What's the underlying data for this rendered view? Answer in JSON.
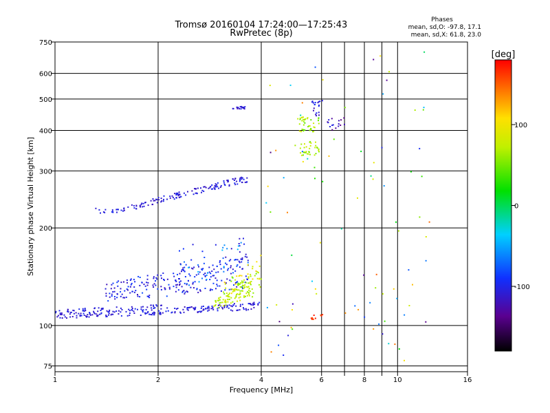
{
  "chart_data": {
    "type": "scatter",
    "title": "Tromsø 20160104 17:24:00—17:25:43",
    "subtitle": "RwPretec (8p)",
    "stats": {
      "header": "Phases",
      "line1": "mean, sd,O: -97.8, 17.1",
      "line2": "mean, sd,X:  61.8, 23.0"
    },
    "xlabel": "Frequency [MHz]",
    "ylabel": "Stationary phase Virtual Height [km]",
    "x_scale": "log",
    "y_scale": "log",
    "xlim": [
      1,
      16
    ],
    "ylim": [
      72,
      750
    ],
    "x_ticks": [
      1,
      2,
      4,
      6,
      8,
      10,
      16
    ],
    "x_tick_labels": [
      "1",
      "2",
      "4",
      "6",
      "8",
      "10",
      "16"
    ],
    "x_minor_ticks": [
      7,
      9
    ],
    "y_ticks": [
      75,
      100,
      200,
      300,
      400,
      500,
      600,
      750
    ],
    "y_tick_labels": [
      "75",
      "100",
      "200",
      "300",
      "400",
      "500",
      "600",
      "750"
    ],
    "grid": true,
    "colorbar": {
      "label": "[deg]",
      "range": [
        -180,
        180
      ],
      "ticks": [
        100,
        0,
        -100
      ],
      "tick_labels": [
        "100",
        "0",
        "-100"
      ]
    },
    "clusters": [
      {
        "x_range": [
          1.0,
          2.05
        ],
        "y_start": [
          105,
          112
        ],
        "y_end": [
          108,
          116
        ],
        "phase": [
          -118,
          -95
        ],
        "n": 150
      },
      {
        "x_range": [
          2.0,
          3.95
        ],
        "y_start": [
          108,
          113
        ],
        "y_end": [
          112,
          118
        ],
        "phase": [
          -120,
          -95
        ],
        "n": 110
      },
      {
        "x_range": [
          1.4,
          3.7
        ],
        "y_start": [
          118,
          135
        ],
        "y_end": [
          130,
          165
        ],
        "phase": [
          -120,
          -80
        ],
        "n": 230
      },
      {
        "x_range": [
          2.3,
          3.7
        ],
        "y_start": [
          130,
          175
        ],
        "y_end": [
          150,
          190
        ],
        "phase": [
          -120,
          -40
        ],
        "n": 60
      },
      {
        "x_range": [
          2.9,
          4.0
        ],
        "y_start": [
          112,
          118
        ],
        "y_end": [
          125,
          150
        ],
        "phase": [
          55,
          90
        ],
        "n": 110
      },
      {
        "x_range": [
          3.1,
          4.0
        ],
        "y_start": [
          118,
          135
        ],
        "y_end": [
          140,
          165
        ],
        "phase": [
          40,
          120
        ],
        "n": 40
      },
      {
        "x_range": [
          1.5,
          3.7
        ],
        "y_start": [
          220,
          228
        ],
        "y_end": [
          278,
          292
        ],
        "phase": [
          -118,
          -95
        ],
        "n": 140
      },
      {
        "x_range": [
          1.3,
          1.55
        ],
        "y_start": [
          223,
          230
        ],
        "y_end": [
          220,
          228
        ],
        "phase": [
          -110,
          -95
        ],
        "n": 10
      },
      {
        "x_range": [
          3.3,
          3.6
        ],
        "y_start": [
          466,
          474
        ],
        "y_end": [
          466,
          474
        ],
        "phase": [
          -120,
          -100
        ],
        "n": 18
      },
      {
        "x_range": [
          5.1,
          5.9
        ],
        "y_start": [
          395,
          440
        ],
        "y_end": [
          395,
          440
        ],
        "phase": [
          40,
          90
        ],
        "n": 40
      },
      {
        "x_range": [
          5.2,
          5.9
        ],
        "y_start": [
          335,
          370
        ],
        "y_end": [
          335,
          370
        ],
        "phase": [
          50,
          90
        ],
        "n": 35
      },
      {
        "x_range": [
          5.6,
          5.95
        ],
        "y_start": [
          440,
          500
        ],
        "y_end": [
          440,
          500
        ],
        "phase": [
          -120,
          -90
        ],
        "n": 18
      },
      {
        "x_range": [
          6.2,
          7.0
        ],
        "y_start": [
          400,
          440
        ],
        "y_end": [
          400,
          440
        ],
        "phase": [
          -140,
          -100
        ],
        "n": 16
      },
      {
        "x_range": [
          5.5,
          6.1
        ],
        "y_start": [
          104,
          108
        ],
        "y_end": [
          104,
          108
        ],
        "phase": [
          150,
          175
        ],
        "n": 10
      },
      {
        "x_range": [
          4.1,
          12.5
        ],
        "y_start": [
          76,
          700
        ],
        "y_end": [
          76,
          700
        ],
        "phase": [
          -150,
          160
        ],
        "n": 90
      }
    ]
  }
}
